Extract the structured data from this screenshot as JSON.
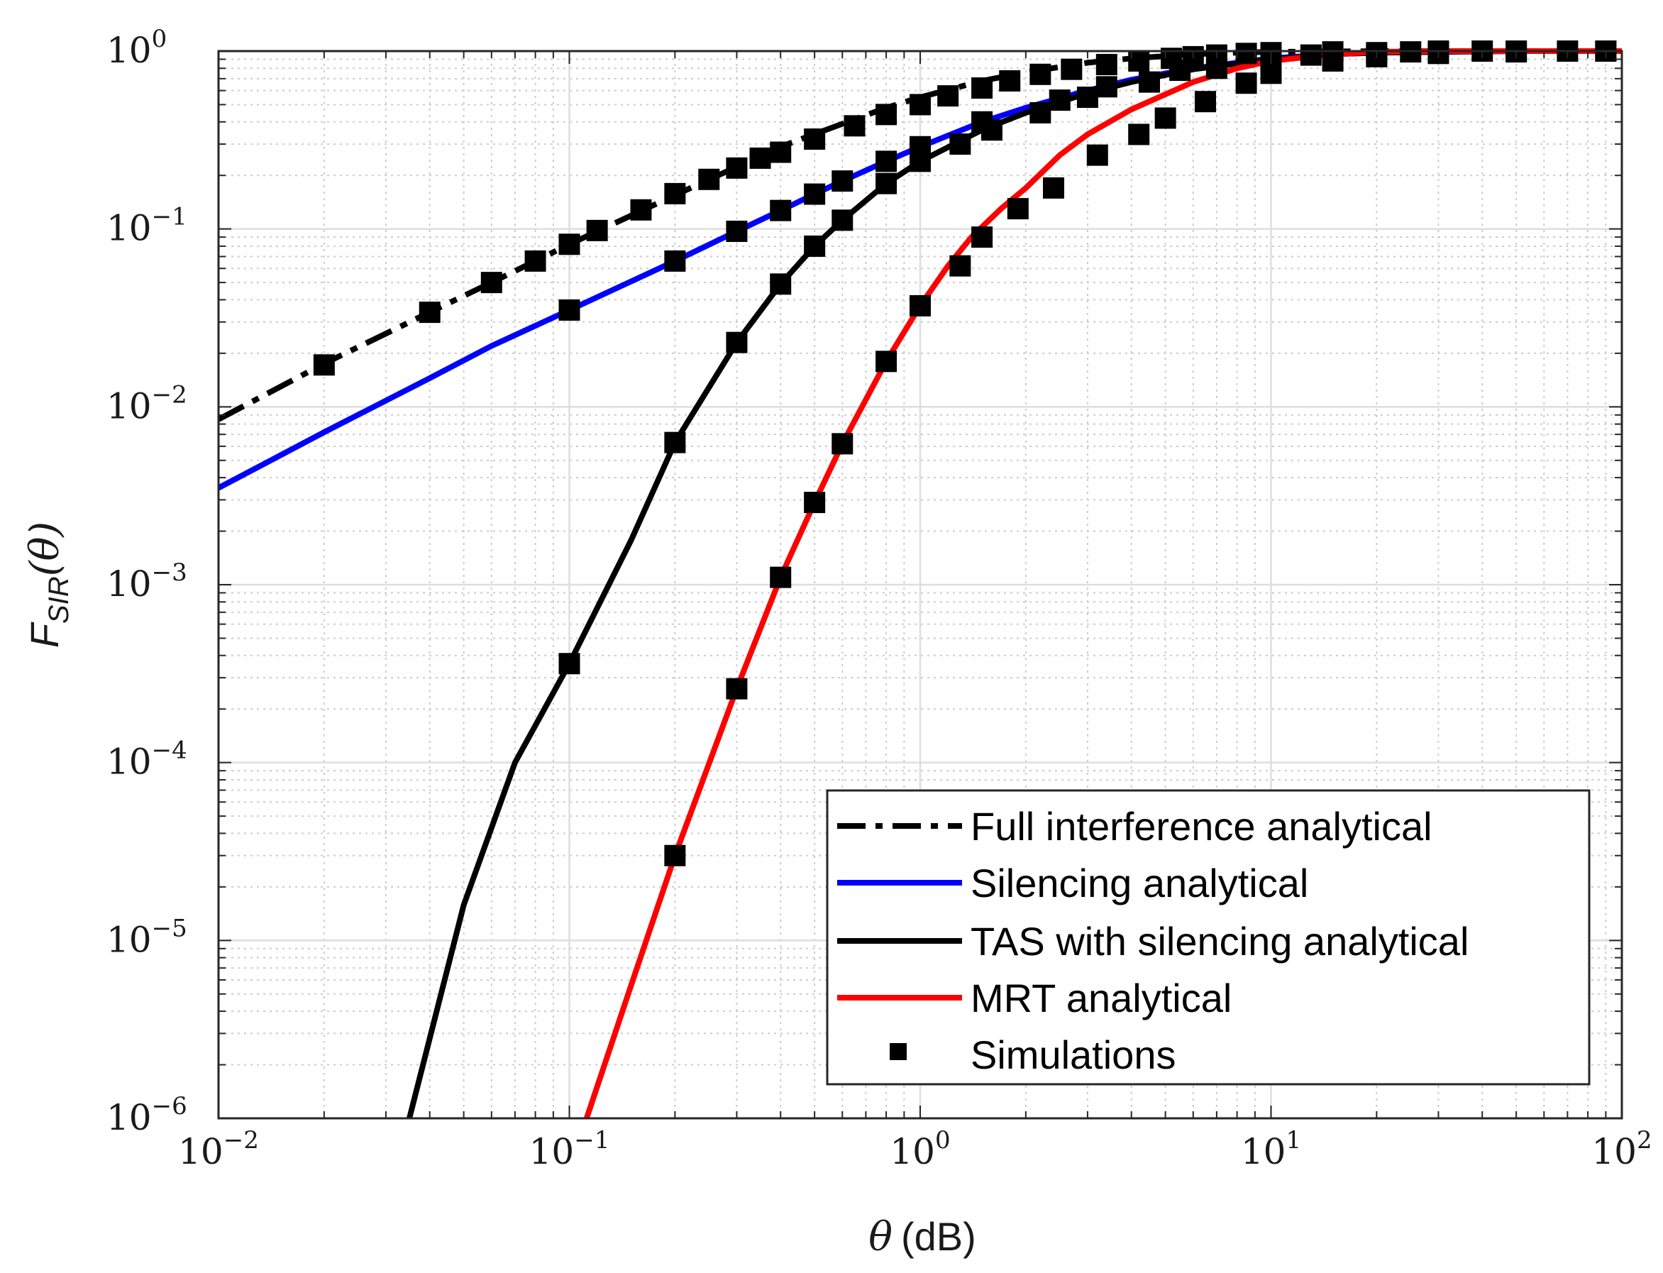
{
  "chart_data": {
    "type": "line",
    "xscale": "log",
    "yscale": "log",
    "xlim": [
      0.01,
      100
    ],
    "ylim": [
      1e-06,
      1
    ],
    "grid": true,
    "minor_grid": true,
    "x_label": {
      "symbol": "θ",
      "unit": "(dB)"
    },
    "y_label": {
      "main": "F",
      "subscript": "SIR",
      "arg": "(θ)"
    },
    "x_ticks": [
      {
        "base": "10",
        "exp": "−2",
        "value": 0.01
      },
      {
        "base": "10",
        "exp": "−1",
        "value": 0.1
      },
      {
        "base": "10",
        "exp": "0",
        "value": 1
      },
      {
        "base": "10",
        "exp": "1",
        "value": 10
      },
      {
        "base": "10",
        "exp": "2",
        "value": 100
      }
    ],
    "y_ticks": [
      {
        "base": "10",
        "exp": "0",
        "value": 1
      },
      {
        "base": "10",
        "exp": "−1",
        "value": 0.1
      },
      {
        "base": "10",
        "exp": "−2",
        "value": 0.01
      },
      {
        "base": "10",
        "exp": "−3",
        "value": 0.001
      },
      {
        "base": "10",
        "exp": "−4",
        "value": 0.0001
      },
      {
        "base": "10",
        "exp": "−5",
        "value": 1e-05
      },
      {
        "base": "10",
        "exp": "−6",
        "value": 1e-06
      }
    ],
    "legend_position": "bottom-right",
    "series": [
      {
        "name": "Full interference analytical",
        "color": "#000000",
        "dash": "dashdot",
        "x": [
          0.01,
          0.02,
          0.04,
          0.06,
          0.08,
          0.1,
          0.2,
          0.4,
          0.6,
          0.8,
          1,
          1.5,
          2,
          3,
          4,
          6,
          8,
          10,
          15,
          20,
          30,
          50,
          100
        ],
        "y": [
          0.0085,
          0.0175,
          0.034,
          0.05,
          0.066,
          0.082,
          0.155,
          0.29,
          0.39,
          0.48,
          0.55,
          0.68,
          0.76,
          0.86,
          0.91,
          0.96,
          0.98,
          0.99,
          0.995,
          0.998,
          1.0,
          1.0,
          1.0
        ]
      },
      {
        "name": "Silencing analytical",
        "color": "#0000ff",
        "dash": "solid",
        "x": [
          0.01,
          0.02,
          0.04,
          0.06,
          0.1,
          0.2,
          0.3,
          0.4,
          0.5,
          0.6,
          0.8,
          1,
          1.5,
          2,
          3,
          4,
          6,
          10,
          15,
          20,
          30,
          50,
          100
        ],
        "y": [
          0.0035,
          0.0072,
          0.0145,
          0.022,
          0.035,
          0.066,
          0.097,
          0.127,
          0.157,
          0.186,
          0.24,
          0.29,
          0.4,
          0.48,
          0.6,
          0.69,
          0.8,
          0.91,
          0.96,
          0.98,
          0.99,
          1.0,
          1.0
        ]
      },
      {
        "name": "TAS with silencing analytical",
        "color": "#000000",
        "dash": "solid",
        "x": [
          0.035,
          0.05,
          0.07,
          0.1,
          0.15,
          0.2,
          0.3,
          0.4,
          0.5,
          0.6,
          0.8,
          1,
          1.5,
          2,
          3,
          4,
          6,
          10,
          15,
          20,
          30,
          50,
          100
        ],
        "y": [
          1e-06,
          1.58e-05,
          0.0001,
          0.00036,
          0.00178,
          0.0063,
          0.023,
          0.049,
          0.08,
          0.112,
          0.18,
          0.24,
          0.36,
          0.45,
          0.58,
          0.67,
          0.79,
          0.9,
          0.96,
          0.98,
          0.99,
          1.0,
          1.0
        ]
      },
      {
        "name": "MRT analytical",
        "color": "#ff0000",
        "dash": "solid",
        "x": [
          0.112,
          0.15,
          0.2,
          0.3,
          0.4,
          0.5,
          0.6,
          0.8,
          1,
          1.2,
          1.4,
          1.7,
          2,
          2.5,
          3,
          4,
          6,
          8,
          10,
          15,
          20,
          30,
          50,
          100
        ],
        "y": [
          1e-06,
          5.6e-06,
          3e-05,
          0.00026,
          0.0011,
          0.0029,
          0.0062,
          0.018,
          0.037,
          0.062,
          0.09,
          0.13,
          0.17,
          0.26,
          0.34,
          0.47,
          0.67,
          0.8,
          0.88,
          0.96,
          0.99,
          1.0,
          1.0,
          1.0
        ]
      }
    ],
    "simulations": {
      "name": "Simulations",
      "marker": "square",
      "color": "#000000",
      "points": [
        [
          0.02,
          0.0172
        ],
        [
          0.04,
          0.034
        ],
        [
          0.06,
          0.05
        ],
        [
          0.08,
          0.066
        ],
        [
          0.1,
          0.082
        ],
        [
          0.12,
          0.098
        ],
        [
          0.16,
          0.128
        ],
        [
          0.2,
          0.158
        ],
        [
          0.25,
          0.19
        ],
        [
          0.3,
          0.22
        ],
        [
          0.35,
          0.25
        ],
        [
          0.4,
          0.27
        ],
        [
          0.5,
          0.32
        ],
        [
          0.65,
          0.38
        ],
        [
          0.8,
          0.44
        ],
        [
          1.0,
          0.5
        ],
        [
          1.2,
          0.56
        ],
        [
          1.5,
          0.62
        ],
        [
          1.8,
          0.68
        ],
        [
          2.2,
          0.74
        ],
        [
          2.7,
          0.79
        ],
        [
          3.4,
          0.84
        ],
        [
          4.2,
          0.88
        ],
        [
          5.2,
          0.91
        ],
        [
          6,
          0.93
        ],
        [
          7,
          0.95
        ],
        [
          8.5,
          0.97
        ],
        [
          10,
          0.98
        ],
        [
          15,
          0.99
        ],
        [
          0.1,
          0.035
        ],
        [
          0.2,
          0.066
        ],
        [
          0.3,
          0.097
        ],
        [
          0.4,
          0.127
        ],
        [
          0.5,
          0.157
        ],
        [
          0.6,
          0.186
        ],
        [
          0.8,
          0.24
        ],
        [
          1.0,
          0.29
        ],
        [
          1.5,
          0.4
        ],
        [
          2.5,
          0.53
        ],
        [
          3.4,
          0.63
        ],
        [
          5.5,
          0.78
        ],
        [
          0.1,
          0.00036
        ],
        [
          0.2,
          0.0063
        ],
        [
          0.3,
          0.023
        ],
        [
          0.4,
          0.049
        ],
        [
          0.5,
          0.08
        ],
        [
          0.6,
          0.112
        ],
        [
          0.8,
          0.18
        ],
        [
          1.0,
          0.24
        ],
        [
          1.3,
          0.3
        ],
        [
          1.6,
          0.36
        ],
        [
          2.2,
          0.45
        ],
        [
          3.0,
          0.55
        ],
        [
          4.5,
          0.67
        ],
        [
          7,
          0.8
        ],
        [
          10,
          0.9
        ],
        [
          13,
          0.95
        ],
        [
          20,
          0.98
        ],
        [
          25,
          0.99
        ],
        [
          30,
          1.0
        ],
        [
          40,
          1.0
        ],
        [
          50,
          1.0
        ],
        [
          70,
          1.0
        ],
        [
          90,
          1.0
        ],
        [
          0.2,
          3e-05
        ],
        [
          0.3,
          0.00026
        ],
        [
          0.4,
          0.0011
        ],
        [
          0.5,
          0.0029
        ],
        [
          0.6,
          0.0062
        ],
        [
          0.8,
          0.018
        ],
        [
          1.0,
          0.037
        ],
        [
          1.3,
          0.062
        ],
        [
          1.5,
          0.09
        ],
        [
          1.9,
          0.13
        ],
        [
          2.4,
          0.17
        ],
        [
          3.2,
          0.26
        ],
        [
          4.2,
          0.34
        ],
        [
          5.0,
          0.42
        ],
        [
          6.5,
          0.52
        ],
        [
          8.5,
          0.66
        ],
        [
          10,
          0.75
        ],
        [
          15,
          0.88
        ],
        [
          20,
          0.93
        ],
        [
          30,
          0.97
        ],
        [
          50,
          0.99
        ],
        [
          90,
          1.0
        ]
      ]
    }
  }
}
